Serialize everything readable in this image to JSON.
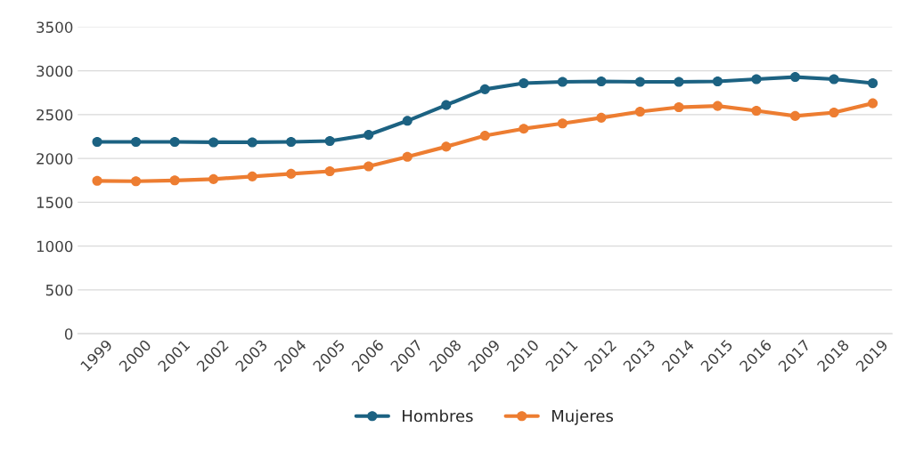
{
  "chart_data": {
    "type": "line",
    "categories": [
      "1999",
      "2000",
      "2001",
      "2002",
      "2003",
      "2004",
      "2005",
      "2006",
      "2007",
      "2008",
      "2009",
      "2010",
      "2011",
      "2012",
      "2013",
      "2014",
      "2015",
      "2016",
      "2017",
      "2018",
      "2019"
    ],
    "series": [
      {
        "name": "Hombres",
        "color": "#1c6282",
        "values": [
          2190,
          2190,
          2190,
          2185,
          2185,
          2190,
          2200,
          2270,
          2430,
          2610,
          2790,
          2860,
          2875,
          2880,
          2875,
          2875,
          2880,
          2905,
          2930,
          2905,
          2860
        ]
      },
      {
        "name": "Mujeres",
        "color": "#ed7d31",
        "values": [
          1745,
          1740,
          1750,
          1765,
          1795,
          1825,
          1855,
          1910,
          2020,
          2135,
          2260,
          2340,
          2400,
          2465,
          2535,
          2585,
          2600,
          2545,
          2485,
          2525,
          2630
        ]
      }
    ],
    "ylim": [
      0,
      3500
    ],
    "yticks": [
      0,
      500,
      1000,
      1500,
      2000,
      2500,
      3000,
      3500
    ],
    "grid": "y",
    "legend": "bottom",
    "marker": "circle",
    "line_style": "solid"
  }
}
